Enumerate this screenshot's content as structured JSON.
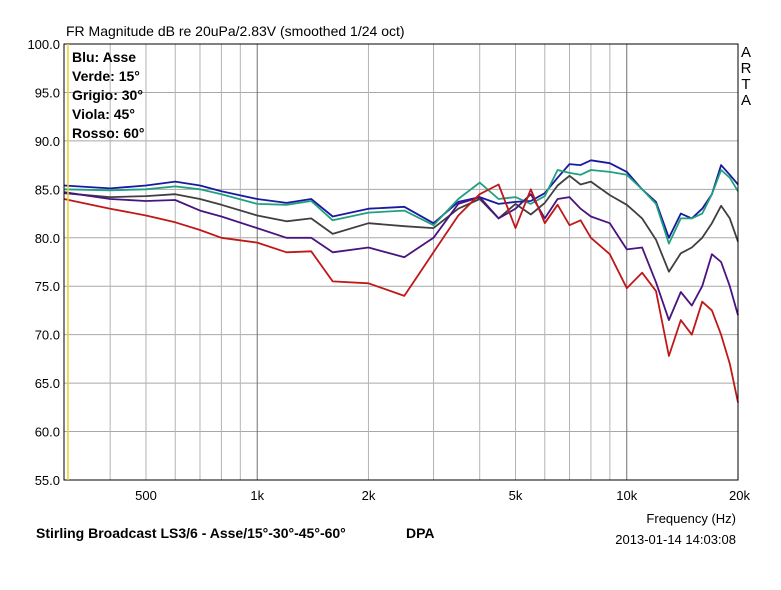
{
  "chart_data": {
    "type": "line",
    "title": "FR Magnitude dB re 20uPa/2.83V (smoothed 1/24 oct)",
    "xlabel": "Frequency (Hz)",
    "x_scale": "log",
    "xlim": [
      300,
      20000
    ],
    "ylim": [
      55,
      100
    ],
    "y_ticks": [
      "100.0",
      "95.0",
      "90.0",
      "85.0",
      "80.0",
      "75.0",
      "70.0",
      "65.0",
      "60.0",
      "55.0"
    ],
    "x_ticks": [
      {
        "value": 500,
        "label": "500"
      },
      {
        "value": 1000,
        "label": "1k"
      },
      {
        "value": 2000,
        "label": "2k"
      },
      {
        "value": 5000,
        "label": "5k"
      },
      {
        "value": 10000,
        "label": "10k"
      },
      {
        "value": 20000,
        "label": "20k"
      }
    ],
    "grid": true,
    "legend_position": "top-left",
    "legend": [
      "Blu: Asse",
      "Verde: 15°",
      "Grigio: 30°",
      "Viola: 45°",
      "Rosso: 60°"
    ],
    "series": [
      {
        "color": "#1a1aa0",
        "x": [
          300,
          400,
          500,
          600,
          700,
          800,
          1000,
          1200,
          1400,
          1600,
          2000,
          2500,
          3000,
          3500,
          4000,
          4500,
          5000,
          5500,
          6000,
          6500,
          7000,
          7500,
          8000,
          9000,
          10000,
          11000,
          12000,
          13000,
          14000,
          15000,
          16000,
          17000,
          18000,
          19000,
          20000
        ],
        "y": [
          85.4,
          85.1,
          85.4,
          85.8,
          85.4,
          84.8,
          84.0,
          83.6,
          84.0,
          82.2,
          83.0,
          83.2,
          81.5,
          83.7,
          84.2,
          83.5,
          83.7,
          83.8,
          84.6,
          86.2,
          87.6,
          87.5,
          88.0,
          87.7,
          86.8,
          85.0,
          83.7,
          80.0,
          82.5,
          82.0,
          83.0,
          84.5,
          87.5,
          86.5,
          85.5
        ]
      },
      {
        "color": "#20a080",
        "x": [
          300,
          400,
          500,
          600,
          700,
          800,
          1000,
          1200,
          1400,
          1600,
          2000,
          2500,
          3000,
          3500,
          4000,
          4500,
          5000,
          5500,
          6000,
          6500,
          7000,
          7500,
          8000,
          9000,
          10000,
          11000,
          12000,
          13000,
          14000,
          15000,
          16000,
          17000,
          18000,
          19000,
          20000
        ],
        "y": [
          85.0,
          84.9,
          85.0,
          85.3,
          85.0,
          84.5,
          83.5,
          83.4,
          83.8,
          81.8,
          82.6,
          82.8,
          81.3,
          84.0,
          85.7,
          84.0,
          84.2,
          83.5,
          84.3,
          87.0,
          86.7,
          86.5,
          87.0,
          86.8,
          86.5,
          85.0,
          83.5,
          79.4,
          82.0,
          82.0,
          82.5,
          84.5,
          87.0,
          86.2,
          84.8
        ]
      },
      {
        "color": "#404040",
        "x": [
          300,
          400,
          500,
          600,
          700,
          800,
          1000,
          1200,
          1400,
          1600,
          2000,
          2500,
          3000,
          3500,
          4000,
          4500,
          5000,
          5500,
          6000,
          6500,
          7000,
          7500,
          8000,
          9000,
          10000,
          11000,
          12000,
          13000,
          14000,
          15000,
          16000,
          17000,
          18000,
          19000,
          20000
        ],
        "y": [
          84.6,
          84.2,
          84.3,
          84.5,
          84.0,
          83.4,
          82.3,
          81.7,
          82.0,
          80.4,
          81.5,
          81.2,
          81.0,
          83.0,
          84.0,
          82.0,
          83.5,
          82.4,
          83.6,
          85.4,
          86.4,
          85.5,
          85.8,
          84.4,
          83.4,
          82.0,
          79.8,
          76.5,
          78.4,
          79.0,
          80.0,
          81.5,
          83.3,
          82.0,
          79.6
        ]
      },
      {
        "color": "#4a1480",
        "x": [
          300,
          400,
          500,
          600,
          700,
          800,
          1000,
          1200,
          1400,
          1600,
          2000,
          2500,
          3000,
          3500,
          4000,
          4500,
          5000,
          5500,
          6000,
          6500,
          7000,
          7500,
          8000,
          9000,
          10000,
          11000,
          12000,
          13000,
          14000,
          15000,
          16000,
          17000,
          18000,
          19000,
          20000
        ],
        "y": [
          84.7,
          84.0,
          83.8,
          83.9,
          82.8,
          82.2,
          81.0,
          80.0,
          80.0,
          78.5,
          79.0,
          78.0,
          80.0,
          83.5,
          84.2,
          82.0,
          83.0,
          84.5,
          82.0,
          84.0,
          84.2,
          83.0,
          82.2,
          81.5,
          78.8,
          79.0,
          75.4,
          71.5,
          74.4,
          73.0,
          75.0,
          78.3,
          77.5,
          75.0,
          72.0
        ]
      },
      {
        "color": "#c01818",
        "x": [
          300,
          400,
          500,
          600,
          700,
          800,
          1000,
          1200,
          1400,
          1600,
          2000,
          2500,
          3000,
          3500,
          4000,
          4500,
          5000,
          5500,
          6000,
          6500,
          7000,
          7500,
          8000,
          9000,
          10000,
          11000,
          12000,
          13000,
          14000,
          15000,
          16000,
          17000,
          18000,
          19000,
          20000
        ],
        "y": [
          84.0,
          83.0,
          82.3,
          81.6,
          80.8,
          80.0,
          79.5,
          78.5,
          78.6,
          75.5,
          75.3,
          74.0,
          78.5,
          82.3,
          84.5,
          85.5,
          81.0,
          85.0,
          81.5,
          83.4,
          81.3,
          81.8,
          80.0,
          78.3,
          74.8,
          76.4,
          74.5,
          67.8,
          71.5,
          70.0,
          73.4,
          72.5,
          70.0,
          67.0,
          63.0
        ]
      }
    ]
  },
  "arta": [
    "A",
    "R",
    "T",
    "A"
  ],
  "footer": {
    "model": "Stirling Broadcast LS3/6 - Asse/15°-30°-45°-60°",
    "mic": "DPA",
    "timestamp": "2013-01-14  14:03:08"
  }
}
